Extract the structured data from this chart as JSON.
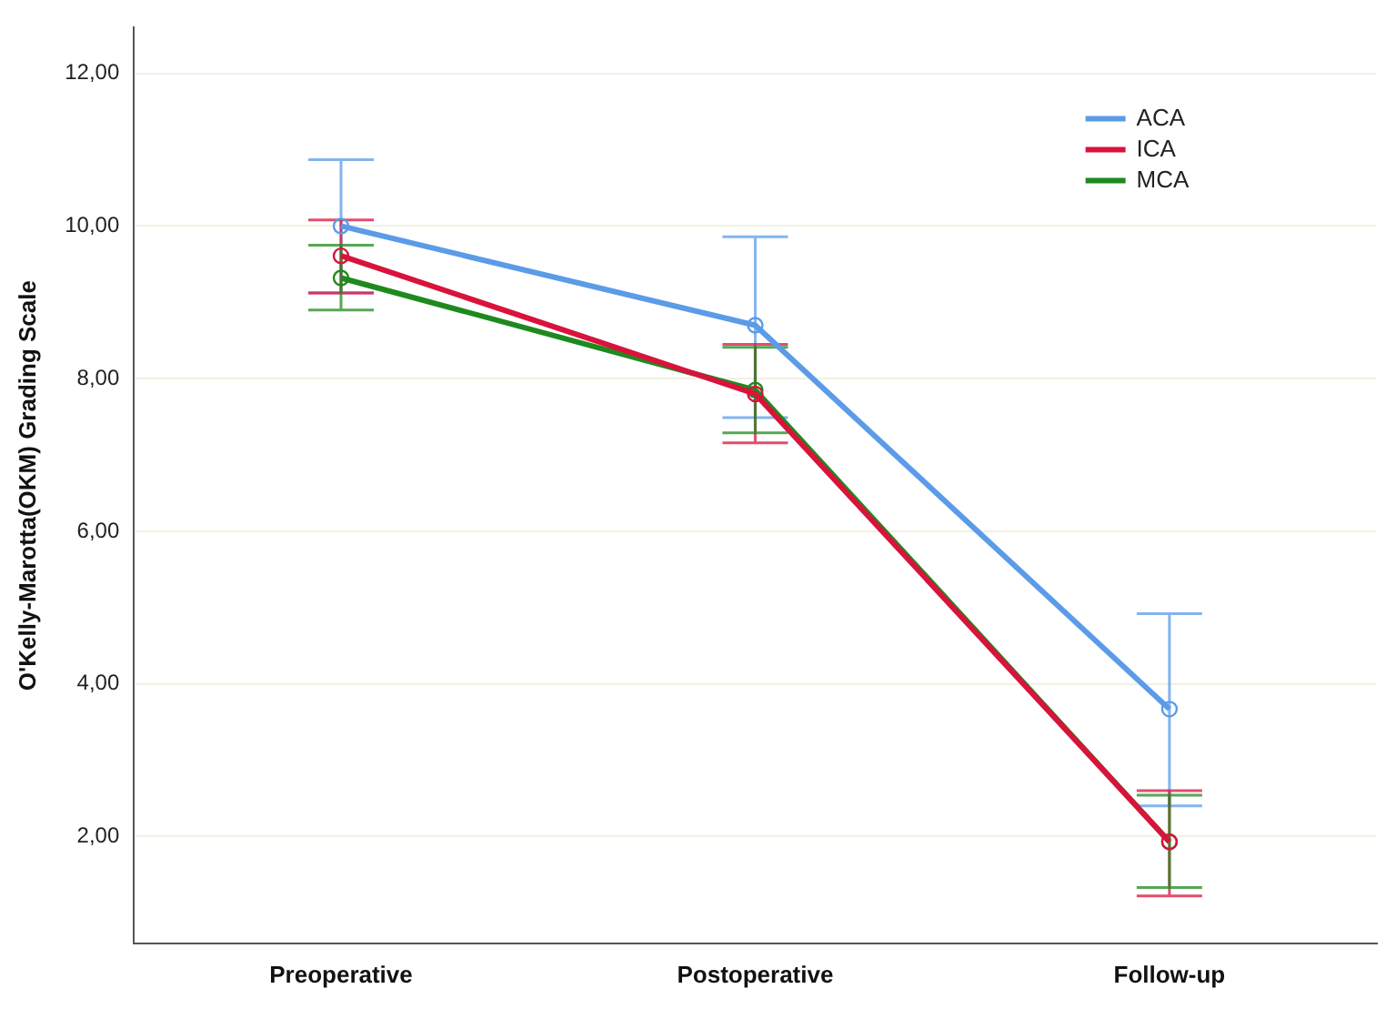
{
  "chart_data": {
    "type": "line",
    "ylabel": "O'Kelly-Marotta(OKM) Grading Scale",
    "categories": [
      "Preoperative",
      "Postoperative",
      "Follow-up"
    ],
    "series": [
      {
        "name": "ACA",
        "color": "#5b9be8",
        "values": [
          10.0,
          8.7,
          3.67
        ],
        "errors": [
          [
            9.13,
            10.87
          ],
          [
            7.49,
            9.86
          ],
          [
            2.4,
            4.92
          ]
        ]
      },
      {
        "name": "ICA",
        "color": "#d8133c",
        "values": [
          9.61,
          7.8,
          1.93
        ],
        "errors": [
          [
            9.12,
            10.08
          ],
          [
            7.16,
            8.45
          ],
          [
            1.22,
            2.6
          ]
        ]
      },
      {
        "name": "MCA",
        "color": "#1e8a1e",
        "values": [
          9.32,
          7.85,
          1.93
        ],
        "errors": [
          [
            8.9,
            9.75
          ],
          [
            7.29,
            8.41
          ],
          [
            1.33,
            2.54
          ]
        ]
      }
    ],
    "ylim": [
      0.6,
      12.6
    ],
    "yticks": [
      {
        "value": 2,
        "label": "2,00"
      },
      {
        "value": 4,
        "label": "4,00"
      },
      {
        "value": 6,
        "label": "6,00"
      },
      {
        "value": 8,
        "label": "8,00"
      },
      {
        "value": 10,
        "label": "10,00"
      },
      {
        "value": 12,
        "label": "12,00"
      }
    ],
    "grid": "y",
    "legend": "top right",
    "marker": "circle",
    "line_style": "solid"
  }
}
